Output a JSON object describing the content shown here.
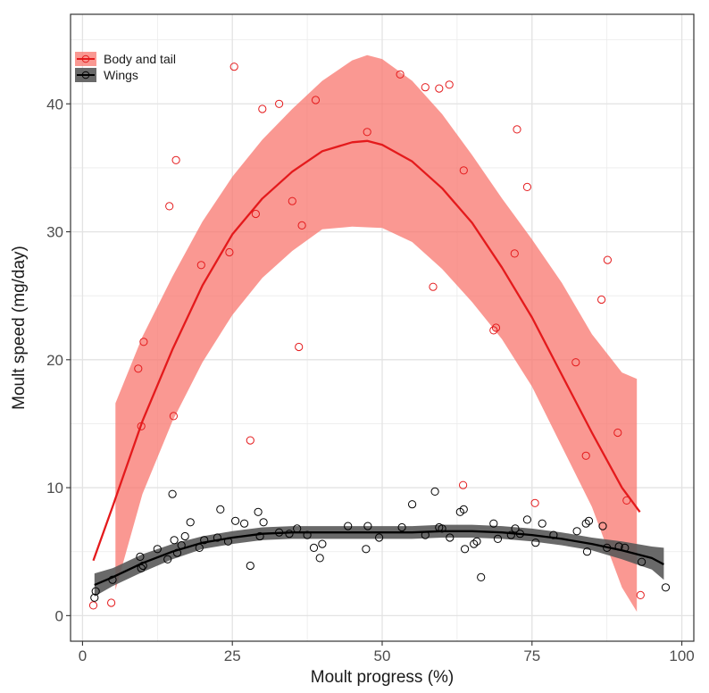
{
  "chart_data": {
    "type": "scatter",
    "title": "",
    "xlabel": "Moult progress (%)",
    "ylabel": "Moult speed (mg/day)",
    "xlim": [
      -2,
      102
    ],
    "ylim": [
      -2,
      47
    ],
    "xticks": [
      0,
      25,
      50,
      75,
      100
    ],
    "yticks": [
      0,
      10,
      20,
      30,
      40
    ],
    "grid": true,
    "legend_position": "top-left",
    "series": [
      {
        "name": "Body and tail",
        "color": "#e41a1c",
        "band_color": "#f8766d",
        "points": [
          [
            1.8,
            0.8
          ],
          [
            4.8,
            1.0
          ],
          [
            9.3,
            19.3
          ],
          [
            9.8,
            14.8
          ],
          [
            10.2,
            21.4
          ],
          [
            14.5,
            32.0
          ],
          [
            15.2,
            15.6
          ],
          [
            15.6,
            35.6
          ],
          [
            19.8,
            27.4
          ],
          [
            24.5,
            28.4
          ],
          [
            25.3,
            42.9
          ],
          [
            28.0,
            13.7
          ],
          [
            28.9,
            31.4
          ],
          [
            30.0,
            39.6
          ],
          [
            32.8,
            40.0
          ],
          [
            35.0,
            32.4
          ],
          [
            36.1,
            21.0
          ],
          [
            36.6,
            30.5
          ],
          [
            38.9,
            40.3
          ],
          [
            47.5,
            37.8
          ],
          [
            53.0,
            42.3
          ],
          [
            57.2,
            41.3
          ],
          [
            58.5,
            25.7
          ],
          [
            59.5,
            41.2
          ],
          [
            61.2,
            41.5
          ],
          [
            63.5,
            10.2
          ],
          [
            63.6,
            34.8
          ],
          [
            68.6,
            22.3
          ],
          [
            69.0,
            22.5
          ],
          [
            72.1,
            28.3
          ],
          [
            72.5,
            38.0
          ],
          [
            74.2,
            33.5
          ],
          [
            75.5,
            8.8
          ],
          [
            82.3,
            19.8
          ],
          [
            84.0,
            12.5
          ],
          [
            86.6,
            24.7
          ],
          [
            87.6,
            27.8
          ],
          [
            89.3,
            14.3
          ],
          [
            90.8,
            9.0
          ],
          [
            93.1,
            1.6
          ]
        ],
        "fit": [
          [
            1.8,
            4.3
          ],
          [
            5,
            8.5
          ],
          [
            10,
            15.2
          ],
          [
            15,
            20.8
          ],
          [
            20,
            25.8
          ],
          [
            25,
            29.8
          ],
          [
            30,
            32.6
          ],
          [
            35,
            34.7
          ],
          [
            40,
            36.3
          ],
          [
            45,
            37.0
          ],
          [
            47.5,
            37.1
          ],
          [
            50,
            36.8
          ],
          [
            55,
            35.5
          ],
          [
            60,
            33.4
          ],
          [
            65,
            30.7
          ],
          [
            70,
            27.2
          ],
          [
            75,
            23.3
          ],
          [
            80,
            18.8
          ],
          [
            85,
            14.3
          ],
          [
            90,
            10.0
          ],
          [
            93,
            8.1
          ]
        ],
        "band_upper": [
          [
            5.5,
            16.6
          ],
          [
            10,
            21.8
          ],
          [
            15,
            26.5
          ],
          [
            20,
            30.8
          ],
          [
            25,
            34.3
          ],
          [
            30,
            37.2
          ],
          [
            35,
            39.6
          ],
          [
            40,
            41.8
          ],
          [
            45,
            43.4
          ],
          [
            47.5,
            43.8
          ],
          [
            50,
            43.5
          ],
          [
            55,
            41.8
          ],
          [
            60,
            39.2
          ],
          [
            65,
            36.0
          ],
          [
            70,
            32.6
          ],
          [
            75,
            29.4
          ],
          [
            80,
            26.0
          ],
          [
            85,
            22.0
          ],
          [
            90,
            19.0
          ],
          [
            92.5,
            18.5
          ]
        ],
        "band_lower": [
          [
            5.5,
            2.0
          ],
          [
            10,
            9.5
          ],
          [
            15,
            15.2
          ],
          [
            20,
            19.8
          ],
          [
            25,
            23.5
          ],
          [
            30,
            26.4
          ],
          [
            35,
            28.5
          ],
          [
            40,
            30.2
          ],
          [
            45,
            30.4
          ],
          [
            50,
            30.3
          ],
          [
            55,
            29.2
          ],
          [
            60,
            27.1
          ],
          [
            65,
            24.5
          ],
          [
            70,
            21.6
          ],
          [
            75,
            17.9
          ],
          [
            80,
            13.2
          ],
          [
            85,
            8.5
          ],
          [
            90,
            2.2
          ],
          [
            92.5,
            0.3
          ]
        ]
      },
      {
        "name": "Wings",
        "color": "#000000",
        "band_color": "#595959",
        "points": [
          [
            2.0,
            1.4
          ],
          [
            2.2,
            1.9
          ],
          [
            5.0,
            2.8
          ],
          [
            9.8,
            3.7
          ],
          [
            10.1,
            3.9
          ],
          [
            9.6,
            4.6
          ],
          [
            12.5,
            5.2
          ],
          [
            14.2,
            4.4
          ],
          [
            15.0,
            9.5
          ],
          [
            15.3,
            5.9
          ],
          [
            15.8,
            4.9
          ],
          [
            16.5,
            5.5
          ],
          [
            17.1,
            6.2
          ],
          [
            18.0,
            7.3
          ],
          [
            19.5,
            5.3
          ],
          [
            20.3,
            5.9
          ],
          [
            22.5,
            6.1
          ],
          [
            23.0,
            8.3
          ],
          [
            24.3,
            5.8
          ],
          [
            25.5,
            7.4
          ],
          [
            27.0,
            7.2
          ],
          [
            28.0,
            3.9
          ],
          [
            29.3,
            8.1
          ],
          [
            29.6,
            6.2
          ],
          [
            30.2,
            7.3
          ],
          [
            32.8,
            6.5
          ],
          [
            34.5,
            6.4
          ],
          [
            35.8,
            6.8
          ],
          [
            37.5,
            6.3
          ],
          [
            38.6,
            5.3
          ],
          [
            39.6,
            4.5
          ],
          [
            40.0,
            5.6
          ],
          [
            44.3,
            7.0
          ],
          [
            47.3,
            5.2
          ],
          [
            47.6,
            7.0
          ],
          [
            49.5,
            6.1
          ],
          [
            53.3,
            6.9
          ],
          [
            55.0,
            8.7
          ],
          [
            57.2,
            6.3
          ],
          [
            58.8,
            9.7
          ],
          [
            59.5,
            6.9
          ],
          [
            60.0,
            6.8
          ],
          [
            61.3,
            6.1
          ],
          [
            63.0,
            8.1
          ],
          [
            63.6,
            8.3
          ],
          [
            63.8,
            5.2
          ],
          [
            65.3,
            5.6
          ],
          [
            65.8,
            5.8
          ],
          [
            66.5,
            3.0
          ],
          [
            68.6,
            7.2
          ],
          [
            69.3,
            6.0
          ],
          [
            71.5,
            6.3
          ],
          [
            72.2,
            6.8
          ],
          [
            73.0,
            6.4
          ],
          [
            74.2,
            7.5
          ],
          [
            75.6,
            5.7
          ],
          [
            76.7,
            7.2
          ],
          [
            78.6,
            6.3
          ],
          [
            82.5,
            6.6
          ],
          [
            84.0,
            7.2
          ],
          [
            84.2,
            5.0
          ],
          [
            84.5,
            7.4
          ],
          [
            86.8,
            7.0
          ],
          [
            87.5,
            5.3
          ],
          [
            89.5,
            5.4
          ],
          [
            90.5,
            5.3
          ],
          [
            93.3,
            4.2
          ],
          [
            97.3,
            2.2
          ]
        ],
        "fit": [
          [
            2,
            2.4
          ],
          [
            5,
            3.0
          ],
          [
            10,
            4.1
          ],
          [
            15,
            5.0
          ],
          [
            20,
            5.7
          ],
          [
            25,
            6.1
          ],
          [
            30,
            6.4
          ],
          [
            35,
            6.5
          ],
          [
            40,
            6.5
          ],
          [
            45,
            6.5
          ],
          [
            50,
            6.5
          ],
          [
            55,
            6.5
          ],
          [
            60,
            6.6
          ],
          [
            65,
            6.6
          ],
          [
            70,
            6.5
          ],
          [
            75,
            6.3
          ],
          [
            80,
            6.0
          ],
          [
            85,
            5.6
          ],
          [
            90,
            5.1
          ],
          [
            95,
            4.5
          ],
          [
            97,
            4.0
          ]
        ],
        "band_upper": [
          [
            2,
            3.3
          ],
          [
            5,
            3.7
          ],
          [
            10,
            4.8
          ],
          [
            15,
            5.6
          ],
          [
            20,
            6.2
          ],
          [
            25,
            6.6
          ],
          [
            30,
            6.9
          ],
          [
            35,
            7.0
          ],
          [
            40,
            7.0
          ],
          [
            45,
            7.0
          ],
          [
            50,
            7.0
          ],
          [
            55,
            7.0
          ],
          [
            60,
            7.1
          ],
          [
            65,
            7.1
          ],
          [
            70,
            7.0
          ],
          [
            75,
            6.8
          ],
          [
            80,
            6.5
          ],
          [
            85,
            6.1
          ],
          [
            90,
            5.8
          ],
          [
            95,
            5.4
          ],
          [
            97,
            5.3
          ]
        ],
        "band_lower": [
          [
            2,
            1.5
          ],
          [
            5,
            2.3
          ],
          [
            10,
            3.4
          ],
          [
            15,
            4.4
          ],
          [
            20,
            5.2
          ],
          [
            25,
            5.6
          ],
          [
            30,
            5.9
          ],
          [
            35,
            6.0
          ],
          [
            40,
            6.0
          ],
          [
            45,
            6.0
          ],
          [
            50,
            6.0
          ],
          [
            55,
            6.0
          ],
          [
            60,
            6.1
          ],
          [
            65,
            6.1
          ],
          [
            70,
            6.0
          ],
          [
            75,
            5.8
          ],
          [
            80,
            5.5
          ],
          [
            85,
            5.1
          ],
          [
            90,
            4.4
          ],
          [
            95,
            3.6
          ],
          [
            97,
            2.8
          ]
        ]
      }
    ]
  }
}
